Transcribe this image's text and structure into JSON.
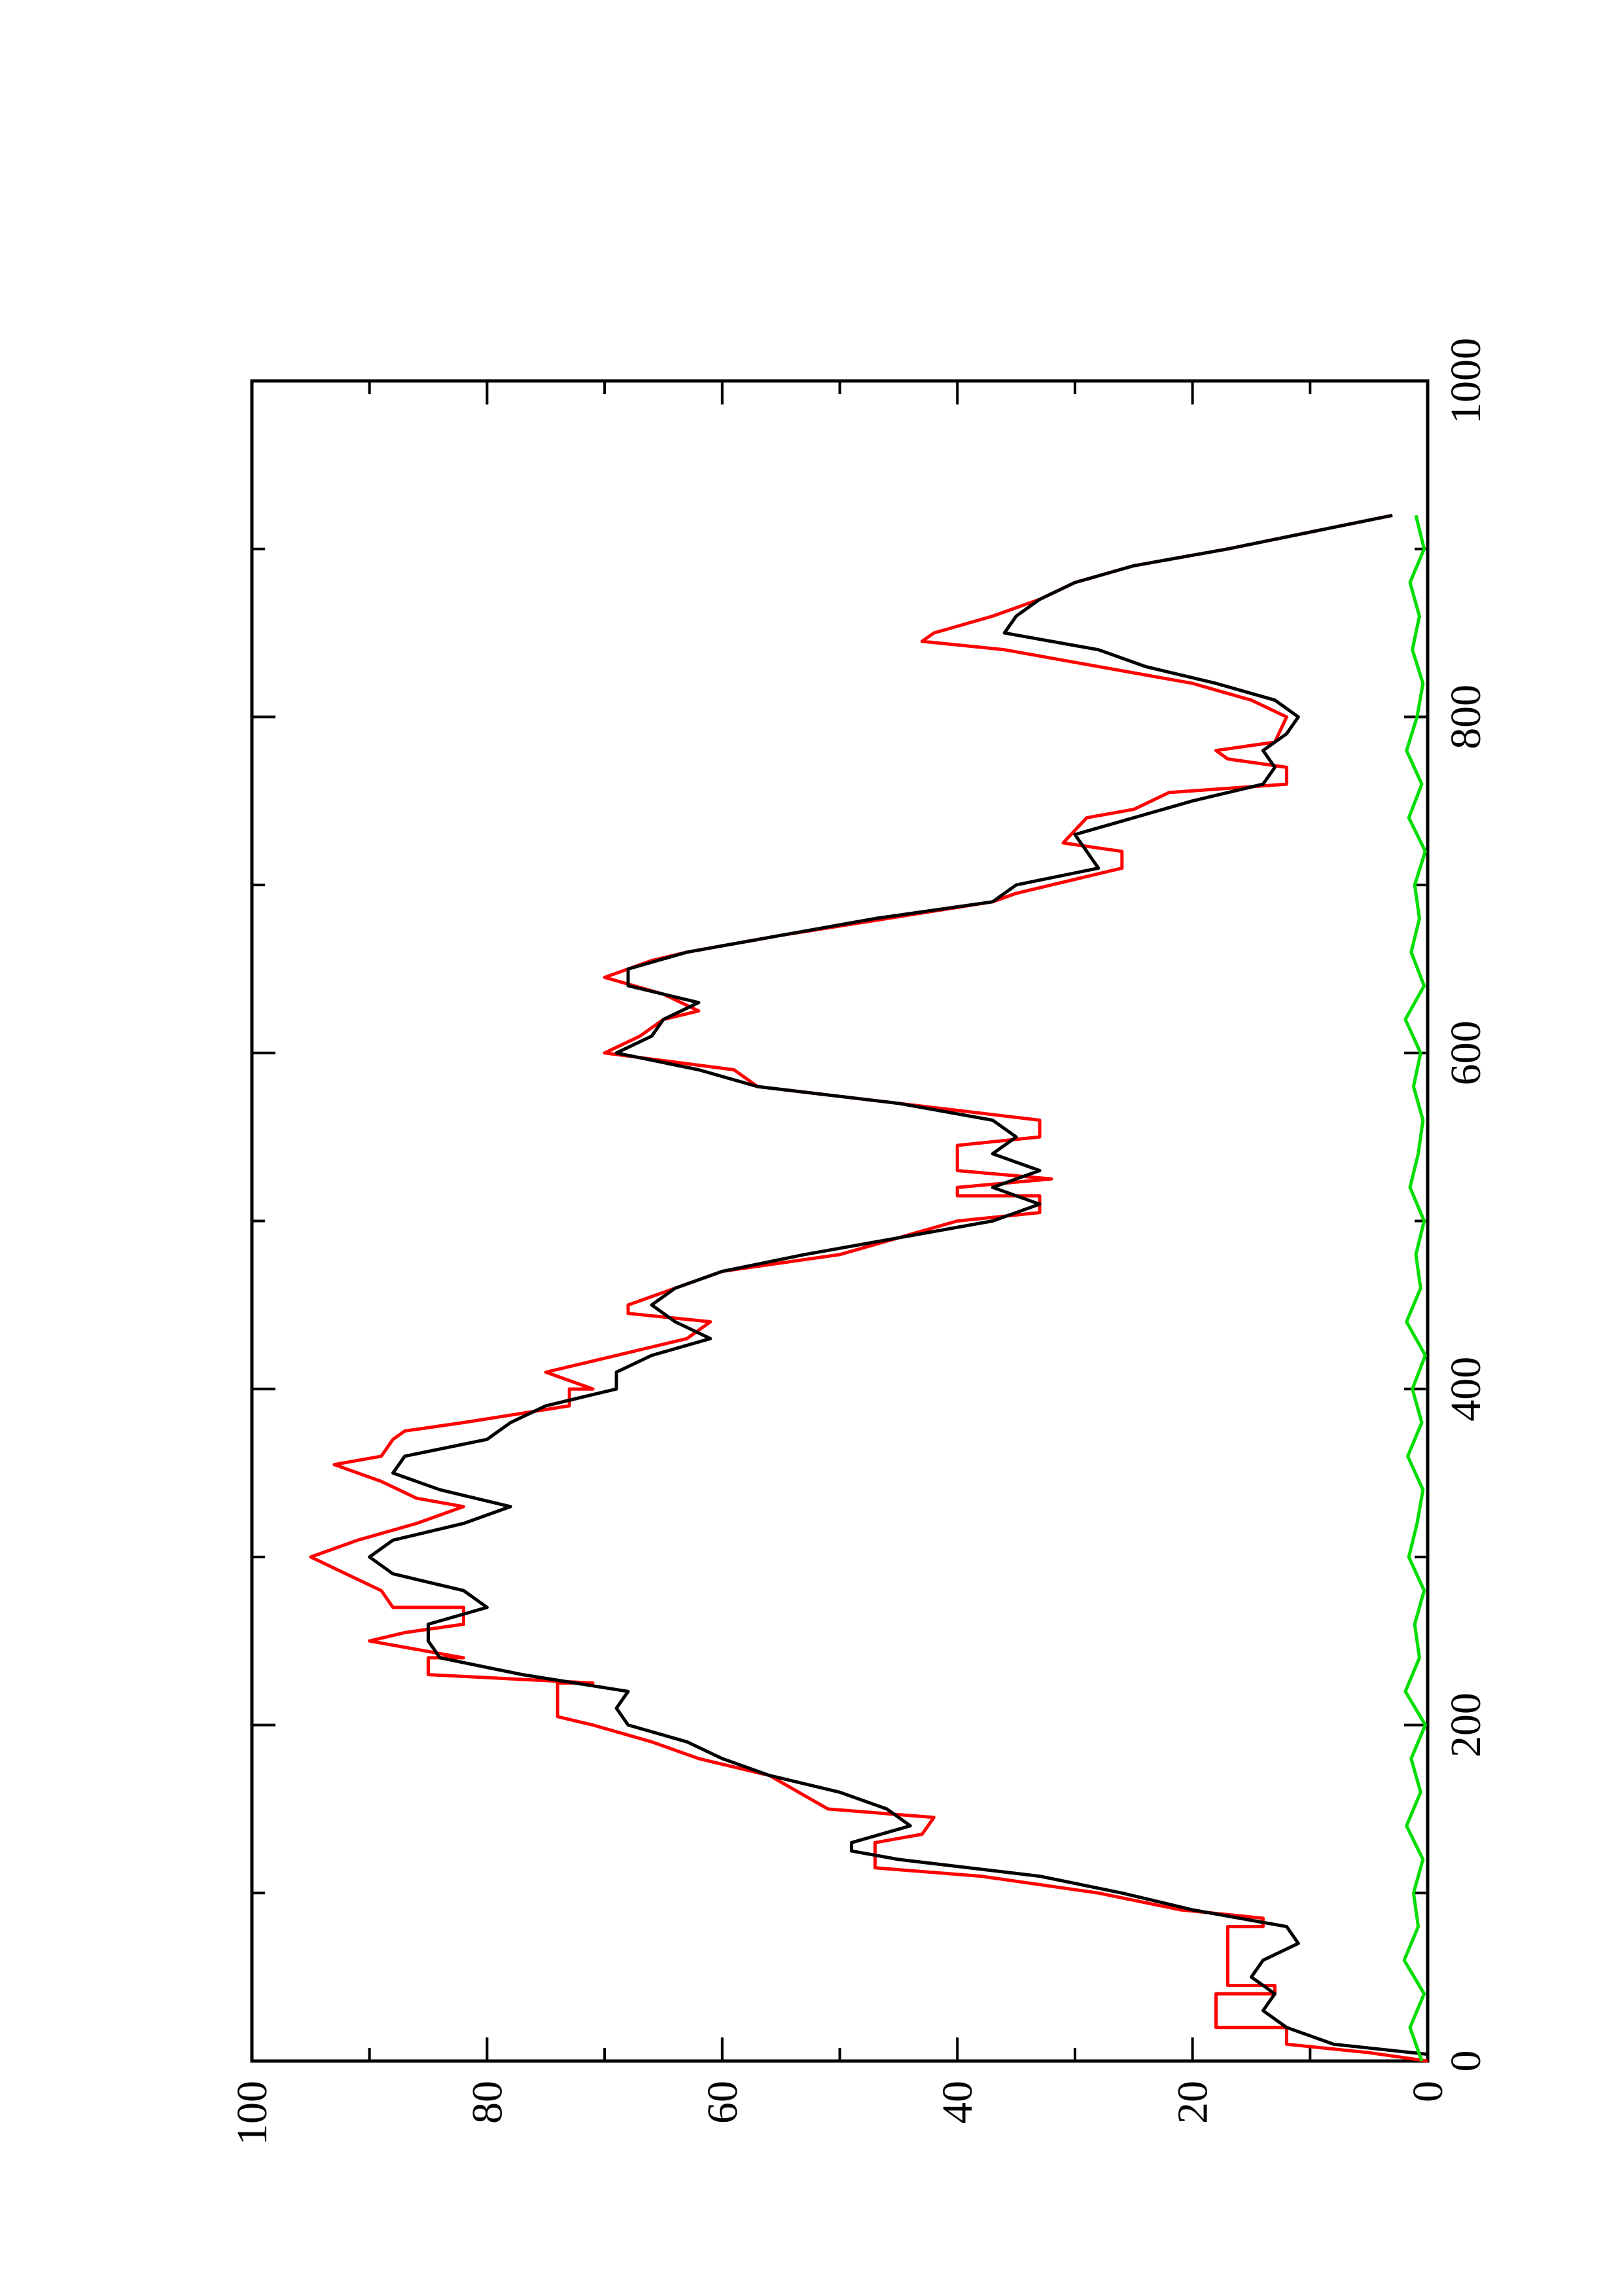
{
  "chart_data": {
    "type": "line",
    "xlim": [
      0,
      1000
    ],
    "ylim": [
      0,
      100
    ],
    "xticks": [
      0,
      200,
      400,
      600,
      800,
      1000
    ],
    "yticks": [
      0,
      20,
      40,
      60,
      80,
      100
    ],
    "xminor_ticks": [
      100,
      300,
      500,
      700,
      900
    ],
    "yminor_ticks": [
      10,
      30,
      50,
      70,
      90
    ],
    "series": [
      {
        "color": "#ff0000",
        "x": [
          0,
          5,
          10,
          20,
          20,
          40,
          40,
          45,
          45,
          80,
          80,
          85,
          90,
          100,
          110,
          115,
          130,
          135,
          145,
          150,
          170,
          180,
          190,
          200,
          205,
          225,
          225,
          230,
          240,
          240,
          250,
          255,
          260,
          270,
          270,
          280,
          290,
          300,
          310,
          320,
          330,
          335,
          345,
          355,
          360,
          370,
          375,
          380,
          390,
          400,
          400,
          410,
          420,
          430,
          440,
          445,
          450,
          455,
          470,
          480,
          500,
          505,
          515,
          515,
          520,
          525,
          530,
          545,
          550,
          560,
          570,
          580,
          590,
          600,
          610,
          620,
          625,
          635,
          645,
          655,
          660,
          670,
          690,
          695,
          700,
          710,
          720,
          725,
          740,
          745,
          755,
          760,
          770,
          775,
          780,
          785,
          800,
          810,
          820,
          830,
          840,
          845,
          850,
          860,
          870,
          880,
          890,
          900,
          910,
          920
        ],
        "values": [
          0,
          5,
          12,
          12,
          18,
          18,
          13,
          13,
          17,
          17,
          14,
          14,
          21,
          28,
          38,
          47,
          47,
          43,
          42,
          51,
          56,
          62,
          66,
          71,
          74,
          74,
          71,
          85,
          85,
          82,
          90,
          87,
          82,
          82,
          88,
          89,
          92,
          95,
          91,
          86,
          82,
          86,
          89,
          93,
          89,
          88,
          87,
          82,
          73,
          73,
          71,
          75,
          69,
          63,
          61,
          68,
          68,
          66,
          60,
          50,
          40,
          33,
          33,
          40,
          40,
          32,
          40,
          40,
          33,
          33,
          45,
          57,
          59,
          70,
          67,
          65,
          62,
          65,
          70,
          66,
          63,
          55,
          37,
          35,
          32,
          26,
          26,
          31,
          29,
          25,
          22,
          12,
          12,
          17,
          18,
          13,
          12,
          15,
          20,
          28,
          36,
          43,
          42,
          37,
          33,
          30,
          25,
          17,
          10,
          3
        ]
      },
      {
        "color": "#000000",
        "x": [
          4,
          10,
          20,
          30,
          40,
          50,
          60,
          70,
          80,
          90,
          100,
          110,
          120,
          125,
          130,
          140,
          150,
          160,
          170,
          180,
          190,
          200,
          210,
          220,
          230,
          240,
          250,
          260,
          270,
          280,
          290,
          300,
          310,
          320,
          330,
          340,
          350,
          360,
          370,
          380,
          390,
          400,
          410,
          420,
          430,
          440,
          450,
          460,
          470,
          480,
          490,
          500,
          510,
          520,
          530,
          540,
          550,
          560,
          570,
          580,
          590,
          600,
          610,
          620,
          630,
          640,
          650,
          660,
          670,
          680,
          690,
          700,
          710,
          720,
          730,
          740,
          750,
          760,
          770,
          780,
          790,
          800,
          810,
          820,
          830,
          840,
          850,
          860,
          870,
          880,
          890,
          900,
          910,
          920
        ],
        "values": [
          0,
          8,
          12,
          14,
          13,
          15,
          14,
          11,
          12,
          20,
          26,
          33,
          45,
          49,
          49,
          44,
          46,
          50,
          56,
          60,
          63,
          68,
          69,
          68,
          77,
          84,
          85,
          85,
          80,
          82,
          88,
          90,
          88,
          82,
          78,
          84,
          88,
          87,
          80,
          78,
          75,
          69,
          69,
          66,
          61,
          64,
          66,
          64,
          60,
          53,
          45,
          37,
          33,
          37,
          33,
          37,
          35,
          37,
          45,
          57,
          62,
          69,
          66,
          65,
          62,
          68,
          68,
          63,
          55,
          47,
          37,
          35,
          28,
          29,
          30,
          25,
          20,
          14,
          13,
          14,
          12,
          11,
          13,
          18,
          24,
          28,
          36,
          35,
          33,
          30,
          25,
          17,
          10,
          3
        ]
      },
      {
        "color": "#00dd00",
        "x": [
          0,
          20,
          40,
          60,
          80,
          100,
          120,
          140,
          160,
          180,
          200,
          220,
          240,
          260,
          280,
          300,
          320,
          340,
          360,
          380,
          400,
          420,
          440,
          460,
          480,
          500,
          520,
          540,
          560,
          580,
          600,
          620,
          640,
          660,
          680,
          700,
          720,
          740,
          760,
          780,
          800,
          820,
          840,
          860,
          880,
          900,
          920
        ],
        "values": [
          0.5,
          1.5,
          0.3,
          2,
          0.8,
          1.2,
          0.4,
          1.8,
          0.6,
          1.4,
          0.2,
          1.9,
          0.7,
          1.1,
          0.3,
          1.6,
          0.9,
          0.4,
          1.7,
          0.5,
          1.3,
          0.2,
          1.8,
          0.6,
          1.0,
          0.3,
          1.5,
          0.8,
          0.4,
          1.2,
          0.6,
          1.9,
          0.3,
          1.4,
          0.7,
          1.1,
          0.2,
          1.6,
          0.5,
          1.8,
          0.9,
          0.4,
          1.3,
          0.7,
          1.5,
          0.3,
          1.0
        ]
      }
    ]
  }
}
